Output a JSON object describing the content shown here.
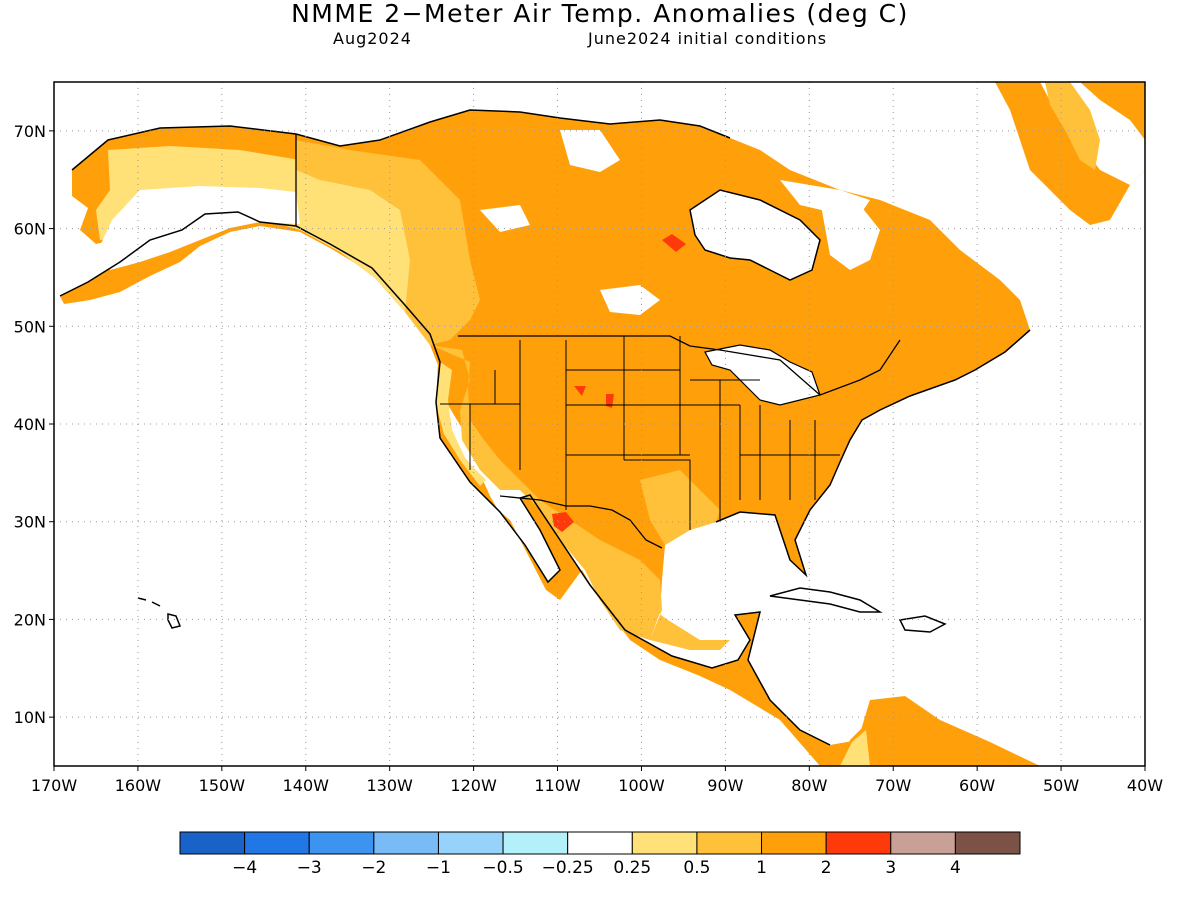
{
  "title": "NMME 2−Meter Air Temp. Anomalies (deg C)",
  "subtitle_left": "Aug2024",
  "subtitle_right": "June2024 initial conditions",
  "axes": {
    "lat_labels": [
      "70N",
      "60N",
      "50N",
      "40N",
      "30N",
      "20N",
      "10N"
    ],
    "lat_values": [
      70,
      60,
      50,
      40,
      30,
      20,
      10
    ],
    "lon_labels": [
      "170W",
      "160W",
      "150W",
      "140W",
      "130W",
      "120W",
      "110W",
      "100W",
      "90W",
      "80W",
      "70W",
      "60W",
      "50W",
      "40W"
    ],
    "lon_values": [
      -170,
      -160,
      -150,
      -140,
      -130,
      -120,
      -110,
      -100,
      -90,
      -80,
      -70,
      -60,
      -50,
      -40
    ],
    "lon_range": [
      -170,
      -40
    ],
    "lat_range": [
      5,
      75
    ],
    "grid": "dotted"
  },
  "colorbar": {
    "colors": [
      "#1862c8",
      "#2277e6",
      "#3d93f0",
      "#78bbf6",
      "#96d2fa",
      "#b4f0fa",
      "#ffffff",
      "#ffe177",
      "#ffc03a",
      "#ffa00a",
      "#ff3a0a",
      "#c8a096",
      "#7d5246"
    ],
    "labels": [
      "−4",
      "−3",
      "−2",
      "−1",
      "−0.5",
      "−0.25",
      "0.25",
      "0.5",
      "1",
      "2",
      "3",
      "4"
    ]
  },
  "colors": {
    "land_default": "#ffa00a",
    "land_outline": "#000000"
  }
}
